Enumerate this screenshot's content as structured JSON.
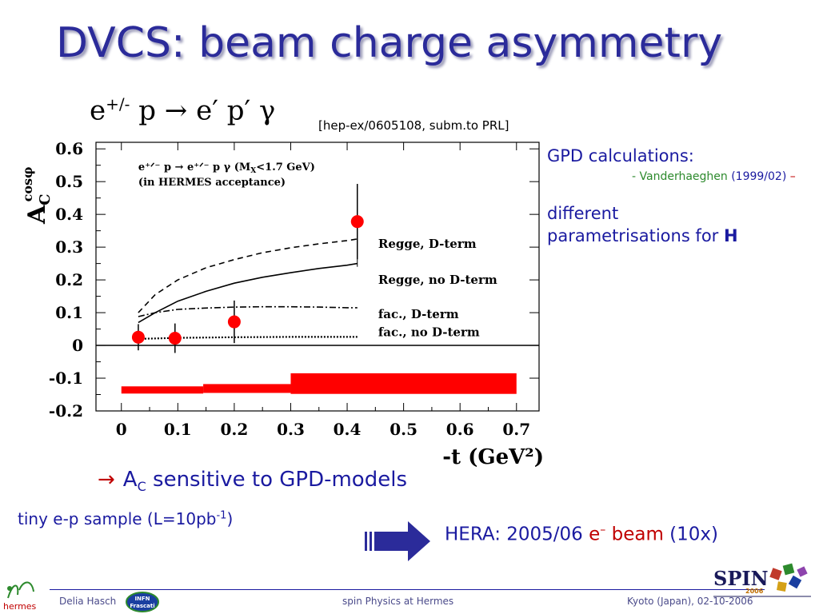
{
  "slide": {
    "title": "DVCS: beam charge asymmetry",
    "reaction": {
      "base1": "e",
      "sup1": "+/-",
      "rest": " p → e′ p′ γ"
    },
    "reference": "[hep-ex/0605108, subm.to PRL]",
    "gpd_heading": "GPD calculations:",
    "gpd_note": {
      "prefix": "- Vanderhaeghen",
      "years": " (1999/02)",
      "suffix": " –"
    },
    "different_line1": "different",
    "different_line2": "parametrisations for ",
    "different_bold": "H",
    "sensitive": {
      "arrow": "→",
      "a": "A",
      "sub": "C",
      "text": " sensitive to GPD-models"
    },
    "sample": {
      "text": "tiny e-p sample (L=10pb",
      "sup": "-1",
      "close": ")"
    },
    "hera": {
      "prefix": "HERA: 2005/06 ",
      "e": "e",
      "sup": "–",
      "beam": " beam",
      "suffix": " (10x)"
    },
    "footer": {
      "author": "Delia Hasch",
      "center": "spin Physics at Hermes",
      "right": "Kyoto (Japan), 02-10-2006"
    },
    "logos": {
      "hermes": "hermes",
      "infn_line1": "INFN",
      "infn_line2": "Frascati",
      "spin": "SPIN",
      "spin_year": "2006"
    }
  },
  "colors": {
    "title": "#2b2b9a",
    "text": "#1a1aa0",
    "accent": "#c00000",
    "band": "#ff0000"
  },
  "chart_data": {
    "type": "scatter",
    "xlabel": "-t (GeV²)",
    "ylabel_main": "A",
    "ylabel_sub": "C",
    "ylabel_sup": "cosφ",
    "xlim": [
      -0.045,
      0.74
    ],
    "ylim": [
      -0.2,
      0.62
    ],
    "xticks": [
      0,
      0.1,
      0.2,
      0.3,
      0.4,
      0.5,
      0.6,
      0.7
    ],
    "xtick_labels": [
      "0",
      "0.1",
      "0.2",
      "0.3",
      "0.4",
      "0.5",
      "0.6",
      "0.7"
    ],
    "yticks": [
      -0.2,
      -0.1,
      0,
      0.1,
      0.2,
      0.3,
      0.4,
      0.5,
      0.6
    ],
    "ytick_labels": [
      "-0.2",
      "-0.1",
      "0",
      "0.1",
      "0.2",
      "0.3",
      "0.4",
      "0.5",
      "0.6"
    ],
    "annotation_line1": "e⁺ᐟ⁻ p → e⁺ᐟ⁻ p γ (M",
    "annotation_sub": "X",
    "annotation_tail": "<1.7 GeV)",
    "annotation_line2": "(in HERMES acceptance)",
    "points": [
      {
        "x": 0.03,
        "y": 0.025,
        "err": 0.04
      },
      {
        "x": 0.095,
        "y": 0.022,
        "err": 0.045
      },
      {
        "x": 0.2,
        "y": 0.072,
        "err": 0.065
      },
      {
        "x": 0.418,
        "y": 0.378,
        "err": 0.115
      }
    ],
    "systematic_band": [
      {
        "x0": 0.0,
        "x1": 0.145,
        "y0": -0.147,
        "y1": -0.125
      },
      {
        "x0": 0.145,
        "x1": 0.3,
        "y0": -0.145,
        "y1": -0.118
      },
      {
        "x0": 0.3,
        "x1": 0.7,
        "y0": -0.148,
        "y1": -0.085
      }
    ],
    "curves": [
      {
        "name": "Regge, D-term",
        "style": "dashed",
        "x": [
          0.03,
          0.06,
          0.1,
          0.15,
          0.2,
          0.25,
          0.3,
          0.35,
          0.4,
          0.418
        ],
        "y": [
          0.1,
          0.155,
          0.2,
          0.237,
          0.262,
          0.283,
          0.298,
          0.31,
          0.32,
          0.325
        ]
      },
      {
        "name": "Regge, no D-term",
        "style": "solid",
        "x": [
          0.03,
          0.06,
          0.1,
          0.15,
          0.2,
          0.25,
          0.3,
          0.35,
          0.4,
          0.418
        ],
        "y": [
          0.07,
          0.1,
          0.135,
          0.165,
          0.19,
          0.208,
          0.222,
          0.235,
          0.245,
          0.25
        ]
      },
      {
        "name": "fac., D-term",
        "style": "dashdot",
        "x": [
          0.03,
          0.06,
          0.1,
          0.15,
          0.2,
          0.25,
          0.3,
          0.35,
          0.4,
          0.418
        ],
        "y": [
          0.088,
          0.1,
          0.11,
          0.114,
          0.117,
          0.118,
          0.118,
          0.117,
          0.115,
          0.115
        ]
      },
      {
        "name": "fac., no D-term",
        "style": "dotted",
        "x": [
          0.03,
          0.1,
          0.2,
          0.3,
          0.418
        ],
        "y": [
          0.02,
          0.023,
          0.025,
          0.026,
          0.026
        ]
      }
    ],
    "legend": [
      "Regge, D-term",
      "Regge, no D-term",
      "fac., D-term",
      "fac., no D-term"
    ],
    "grid": false
  }
}
